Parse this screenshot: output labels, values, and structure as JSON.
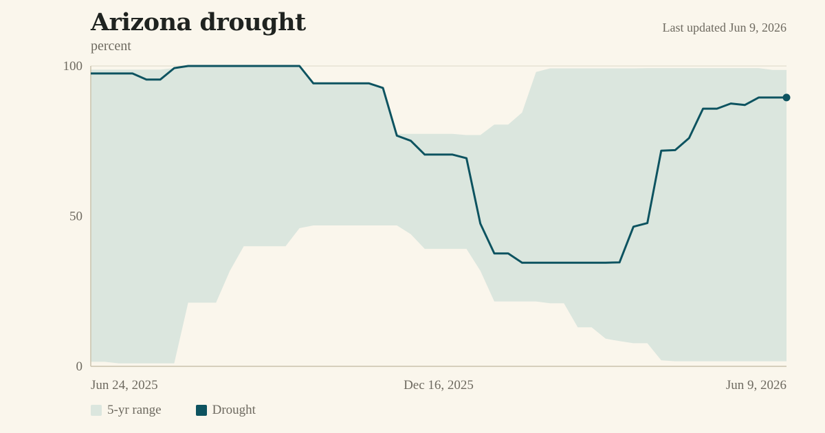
{
  "header": {
    "title": "Arizona drought",
    "subtitle": "percent",
    "updated": "Last updated Jun 9, 2026"
  },
  "legend": {
    "range_label": "5-yr range",
    "series_label": "Drought"
  },
  "colors": {
    "background": "#faf6ec",
    "range_fill": "#dbe6de",
    "line": "#0d5360",
    "axis": "#c9c2ab",
    "grid": "#e6e2d4"
  },
  "chart_data": {
    "type": "line",
    "title": "Arizona drought",
    "ylabel": "percent",
    "xlabel": "",
    "ylim": [
      0,
      100
    ],
    "yticks": [
      0,
      50,
      100
    ],
    "xlim": [
      "2025-06-24",
      "2026-06-09"
    ],
    "xtick_labels": [
      "Jun 24, 2025",
      "Dec 16, 2025",
      "Jun 9, 2026"
    ],
    "grid": true,
    "legend_position": "bottom-left",
    "x": [
      "2025-06-24",
      "2025-07-01",
      "2025-07-08",
      "2025-07-15",
      "2025-07-22",
      "2025-07-29",
      "2025-08-05",
      "2025-08-12",
      "2025-08-19",
      "2025-08-26",
      "2025-09-02",
      "2025-09-09",
      "2025-09-16",
      "2025-09-23",
      "2025-09-30",
      "2025-10-07",
      "2025-10-14",
      "2025-10-21",
      "2025-10-28",
      "2025-11-04",
      "2025-11-11",
      "2025-11-18",
      "2025-11-25",
      "2025-12-02",
      "2025-12-09",
      "2025-12-16",
      "2025-12-23",
      "2025-12-30",
      "2026-01-06",
      "2026-01-13",
      "2026-01-20",
      "2026-01-27",
      "2026-02-03",
      "2026-02-10",
      "2026-02-17",
      "2026-02-24",
      "2026-03-03",
      "2026-03-10",
      "2026-03-17",
      "2026-03-24",
      "2026-03-31",
      "2026-04-07",
      "2026-04-14",
      "2026-04-21",
      "2026-04-28",
      "2026-05-05",
      "2026-05-12",
      "2026-05-19",
      "2026-05-26",
      "2026-06-02",
      "2026-06-09"
    ],
    "series": [
      {
        "name": "Drought",
        "values": [
          97.5,
          97.5,
          97.5,
          97.5,
          95.5,
          95.5,
          99.3,
          100,
          100,
          100,
          100,
          100,
          100,
          100,
          100,
          100,
          94.2,
          94.2,
          94.2,
          94.2,
          94.2,
          92.7,
          76.8,
          75.1,
          70.5,
          70.5,
          70.5,
          69.3,
          47.5,
          37.6,
          37.6,
          34.5,
          34.5,
          34.5,
          34.5,
          34.5,
          34.5,
          34.5,
          34.6,
          46.5,
          47.7,
          71.8,
          72.0,
          76.0,
          85.8,
          85.8,
          87.5,
          87.0,
          89.5,
          89.5,
          89.5
        ]
      }
    ],
    "range": {
      "name": "5-yr range",
      "upper": [
        98.8,
        98.8,
        98.8,
        98.8,
        98.8,
        98.8,
        99.3,
        100,
        100,
        100,
        100,
        100,
        100,
        100,
        100,
        100,
        94.2,
        94.2,
        94.2,
        94.2,
        94.2,
        92.8,
        77.4,
        77.4,
        77.4,
        77.4,
        77.4,
        77.0,
        77.0,
        80.5,
        80.5,
        84.5,
        98.0,
        99.2,
        99.2,
        99.2,
        99.2,
        99.2,
        99.2,
        99.2,
        99.3,
        99.3,
        99.3,
        99.3,
        99.3,
        99.3,
        99.3,
        99.3,
        99.3,
        98.7,
        98.7
      ],
      "lower": [
        1.5,
        1.5,
        1.0,
        1.0,
        1.0,
        1.0,
        1.0,
        21.2,
        21.2,
        21.2,
        31.8,
        40.0,
        40.0,
        40.0,
        40.0,
        46.0,
        46.9,
        46.9,
        46.9,
        46.9,
        46.9,
        46.9,
        46.9,
        44.0,
        39.1,
        39.1,
        39.1,
        39.1,
        31.8,
        21.6,
        21.6,
        21.6,
        21.6,
        21.0,
        21.0,
        13.0,
        13.0,
        9.2,
        8.4,
        7.7,
        7.7,
        2.0,
        1.7,
        1.7,
        1.7,
        1.7,
        1.7,
        1.7,
        1.7,
        1.7,
        1.7
      ]
    }
  }
}
